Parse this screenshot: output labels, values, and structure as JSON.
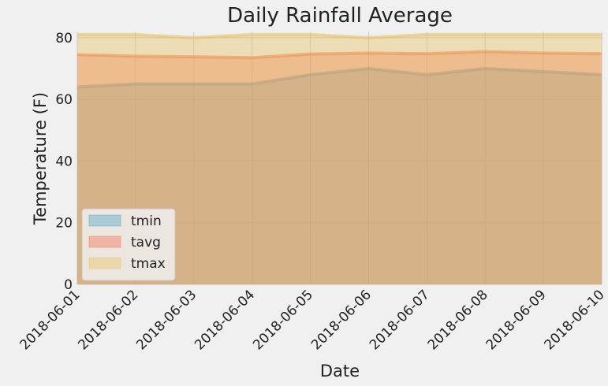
{
  "chart_data": {
    "type": "area",
    "title": "Daily Rainfall Average",
    "xlabel": "Date",
    "ylabel": "Temperature (F)",
    "ylim": [
      0,
      82
    ],
    "yticks": [
      0,
      20,
      40,
      60,
      80
    ],
    "grid": true,
    "legend_position": "lower-left",
    "categories": [
      "2018-06-01",
      "2018-06-02",
      "2018-06-03",
      "2018-06-04",
      "2018-06-05",
      "2018-06-06",
      "2018-06-07",
      "2018-06-08",
      "2018-06-09",
      "2018-06-10"
    ],
    "series": [
      {
        "name": "tmin",
        "color": "#4aa3c8",
        "values": [
          64,
          65,
          65,
          65,
          68,
          70,
          68,
          70,
          69,
          68
        ]
      },
      {
        "name": "tavg",
        "color": "#f36c4a",
        "values": [
          74.5,
          74,
          73.8,
          73.5,
          74.7,
          75,
          74.8,
          75.5,
          75,
          74.8
        ]
      },
      {
        "name": "tmax",
        "color": "#e8c060",
        "values": [
          81,
          81,
          80,
          81,
          81,
          80,
          81,
          81,
          81,
          81
        ]
      }
    ]
  }
}
